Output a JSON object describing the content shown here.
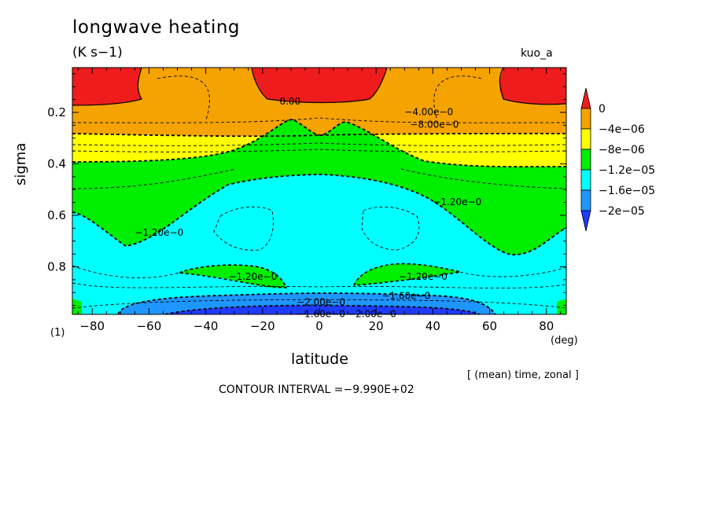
{
  "header": {
    "title": "longwave heating",
    "units": "(K s−1)",
    "run_name": "kuo_a",
    "panel_number": "(1)",
    "averaging_note": "[ (mean) time, zonal ]",
    "contour_interval": "CONTOUR INTERVAL =−9.990E+02"
  },
  "colors": {
    "red": "#ee1c1c",
    "orange": "#f5a300",
    "yellow": "#ffff00",
    "green": "#00ee00",
    "cyan": "#00ffff",
    "lightblue": "#1e96ff",
    "blue": "#1e3cff",
    "contour": "#000000"
  },
  "chart_data": {
    "type": "heatmap",
    "title": "longwave heating",
    "units": "(K s−1)",
    "xlabel": "latitude",
    "x_unit": "(deg)",
    "ylabel": "sigma",
    "xlim": [
      -87,
      87
    ],
    "ylim": [
      1.0,
      0.03
    ],
    "x_ticks": [
      -80,
      -60,
      -40,
      -20,
      0,
      20,
      40,
      60,
      80
    ],
    "x_tick_labels": [
      "−80",
      "−60",
      "−40",
      "−20",
      "0",
      "20",
      "40",
      "60",
      "80"
    ],
    "y_ticks": [
      0.2,
      0.4,
      0.6,
      0.8
    ],
    "y_tick_labels": [
      "0.2",
      "0.4",
      "0.6",
      "0.8"
    ],
    "colorbar": {
      "placement": "right",
      "levels": [
        0,
        -4e-06,
        -8e-06,
        -1.2e-05,
        -1.6e-05,
        -2e-05
      ],
      "labels": [
        "0",
        "−4e−06",
        "−8e−06",
        "−1.2e−05",
        "−1.6e−05",
        "−2e−05"
      ],
      "bins": [
        {
          "range": "> 0",
          "color": "red"
        },
        {
          "range": "-4e-06 to 0",
          "color": "orange"
        },
        {
          "range": "-8e-06 to -4e-06",
          "color": "yellow"
        },
        {
          "range": "-1.2e-05 to -8e-06",
          "color": "green"
        },
        {
          "range": "-1.6e-05 to -1.2e-05",
          "color": "cyan"
        },
        {
          "range": "-2e-05 to -1.6e-05",
          "color": "lightblue"
        },
        {
          "range": "< -2e-05",
          "color": "blue"
        }
      ]
    },
    "contour_labels": [
      {
        "text": "0.00",
        "lat": -14,
        "sigma": 0.17
      },
      {
        "text": "−4.00e−0",
        "lat": 30,
        "sigma": 0.21
      },
      {
        "text": "−8.00e−0",
        "lat": 32,
        "sigma": 0.26
      },
      {
        "text": "−1.20e−0",
        "lat": 40,
        "sigma": 0.56
      },
      {
        "text": "−1.20e−0",
        "lat": -65,
        "sigma": 0.68
      },
      {
        "text": "−1.20e−0",
        "lat": -32,
        "sigma": 0.85
      },
      {
        "text": "−1.20e−0",
        "lat": 28,
        "sigma": 0.85
      },
      {
        "text": "−1.60e−0",
        "lat": 22,
        "sigma": 0.925
      },
      {
        "text": "−2.00e−0",
        "lat": -8,
        "sigma": 0.95
      },
      {
        "text": "−1.60e−0",
        "lat": -8,
        "sigma": 0.995
      },
      {
        "text": "−2.00e−0",
        "lat": 10,
        "sigma": 0.995
      }
    ],
    "region_levels": [
      {
        "region": "polar upper levels (sigma < 0.15)",
        "value_range": "> 0",
        "color": "red"
      },
      {
        "region": "equatorial top (sigma < 0.15)",
        "value_range": "> 0",
        "color": "red"
      },
      {
        "region": "upper troposphere band",
        "value_range": "-4e-06 to 0",
        "color": "orange"
      },
      {
        "region": "middle troposphere",
        "value_range": "-1.2e-05 to -8e-06",
        "color": "green"
      },
      {
        "region": "lower troposphere",
        "value_range": "-1.6e-05 to -1.2e-05",
        "color": "cyan"
      },
      {
        "region": "near surface",
        "value_range": "< -1.6e-05",
        "color": "lightblue"
      }
    ]
  }
}
